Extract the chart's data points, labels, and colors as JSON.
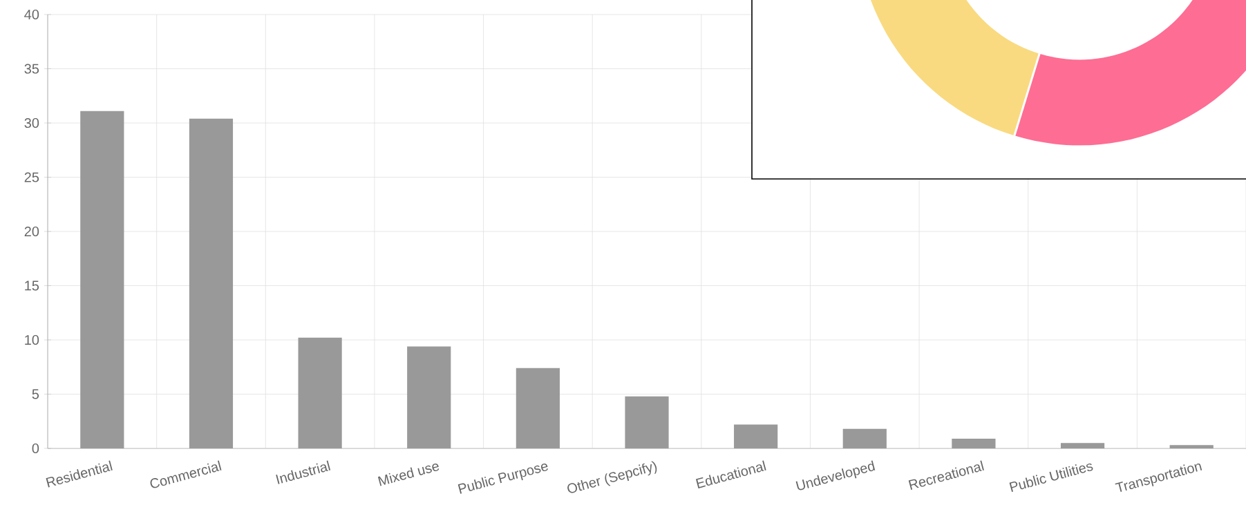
{
  "chart_data": {
    "type": "bar",
    "categories": [
      "Residential",
      "Commercial",
      "Industrial",
      "Mixed use",
      "Public Purpose",
      "Other (Sepcify)",
      "Educational",
      "Undeveloped",
      "Recreational",
      "Public Utilities",
      "Transportation"
    ],
    "values": [
      31.1,
      30.4,
      10.2,
      9.4,
      7.4,
      4.8,
      2.2,
      1.8,
      0.9,
      0.5,
      0.3
    ],
    "color": "#999999",
    "ylim": [
      0,
      40
    ],
    "yticks": [
      0,
      5,
      10,
      15,
      20,
      25,
      30,
      35,
      40
    ],
    "grid": true
  }
}
